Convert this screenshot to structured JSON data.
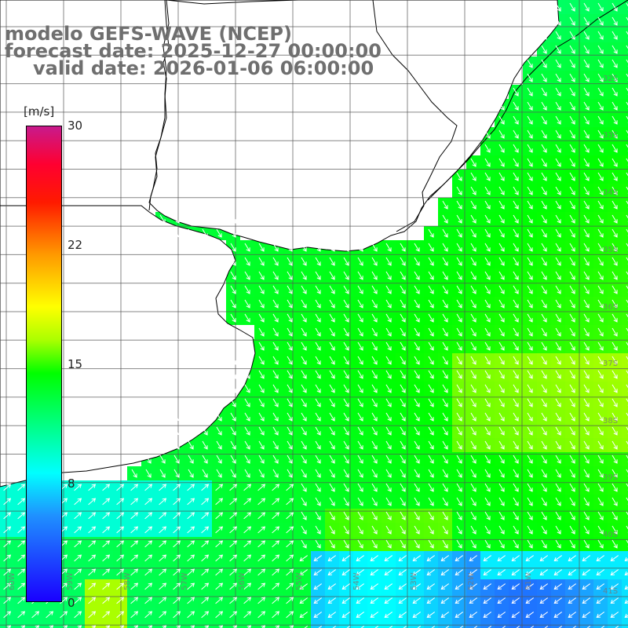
{
  "title": {
    "line1": "modelo GEFS-WAVE (NCEP)",
    "line2": "forecast date: 2025-12-27 00:00:00",
    "line3": "valid date: 2026-01-06 06:00:00"
  },
  "colorbar": {
    "unit": "[m/s]",
    "min": 0,
    "max": 30,
    "ticks": [
      "30",
      "22",
      "15",
      "8",
      "0"
    ],
    "tick_values": [
      30,
      22,
      15,
      8,
      0
    ],
    "colors": [
      "#1a00ff",
      "#1f90ff",
      "#00ffff",
      "#00ff00",
      "#aaff00",
      "#ffff00",
      "#ff9900",
      "#ff1a00",
      "#c81a8c"
    ]
  },
  "map": {
    "lat_labels": [
      "32S",
      "33S",
      "34S",
      "35S",
      "36S",
      "37S",
      "38S",
      "39S",
      "40S",
      "41S"
    ],
    "lon_labels": [
      "60W",
      "59W",
      "58W",
      "57W",
      "56W",
      "55W",
      "54W",
      "53W",
      "52W",
      "51W"
    ],
    "land_color": "#ffffff",
    "coast_color": "#000000",
    "grid_color": "#555555",
    "arrow_color": "#ffffff"
  }
}
